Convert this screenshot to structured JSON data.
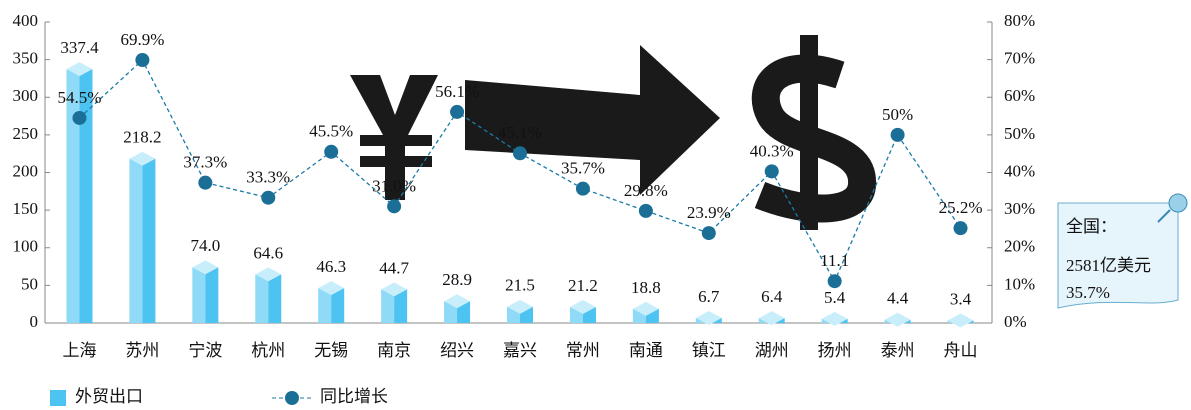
{
  "chart_data": {
    "type": "bar-line",
    "categories": [
      "上海",
      "苏州",
      "宁波",
      "杭州",
      "无锡",
      "南京",
      "绍兴",
      "嘉兴",
      "常州",
      "南通",
      "镇江",
      "湖州",
      "扬州",
      "泰州",
      "舟山"
    ],
    "series": [
      {
        "name": "外贸出口",
        "type": "bar",
        "color": "#4cc3f0",
        "values": [
          337.4,
          218.2,
          74.0,
          64.6,
          46.3,
          44.7,
          28.9,
          21.5,
          21.2,
          18.8,
          6.7,
          6.4,
          5.4,
          4.4,
          3.4
        ],
        "value_labels": [
          "337.4",
          "218.2",
          "74.0",
          "64.6",
          "46.3",
          "44.7",
          "28.9",
          "21.5",
          "21.2",
          "18.8",
          "6.7",
          "6.4",
          "5.4",
          "4.4",
          "3.4"
        ]
      },
      {
        "name": "同比增长",
        "type": "line",
        "axis": "y2",
        "color": "#1b7aa6",
        "values": [
          54.5,
          69.9,
          37.3,
          33.3,
          45.5,
          31.0,
          56.1,
          45.1,
          35.7,
          29.8,
          23.9,
          40.3,
          11.1,
          50,
          25.2
        ],
        "value_labels": [
          "54.5%",
          "69.9%",
          "37.3%",
          "33.3%",
          "45.5%",
          "31.0%",
          "56.1%",
          "45.1%",
          "35.7%",
          "29.8%",
          "23.9%",
          "40.3%",
          "11.1",
          "50%",
          "25.2%"
        ]
      }
    ],
    "ylim": [
      0,
      400
    ],
    "yticks": [
      0,
      50,
      100,
      150,
      200,
      250,
      300,
      350,
      400
    ],
    "y2lim": [
      0,
      80
    ],
    "y2ticks": [
      {
        "value": 0,
        "label": "0%"
      },
      {
        "value": 10,
        "label": "10%"
      },
      {
        "value": 20,
        "label": "20%"
      },
      {
        "value": 30,
        "label": "30%"
      },
      {
        "value": 40,
        "label": "40%"
      },
      {
        "value": 50,
        "label": "50%"
      },
      {
        "value": 60,
        "label": "60%"
      },
      {
        "value": 70,
        "label": "70%"
      },
      {
        "value": 80,
        "label": "80%"
      }
    ],
    "annotation": [
      "全国：",
      "2581亿美元",
      "35.7%"
    ]
  }
}
